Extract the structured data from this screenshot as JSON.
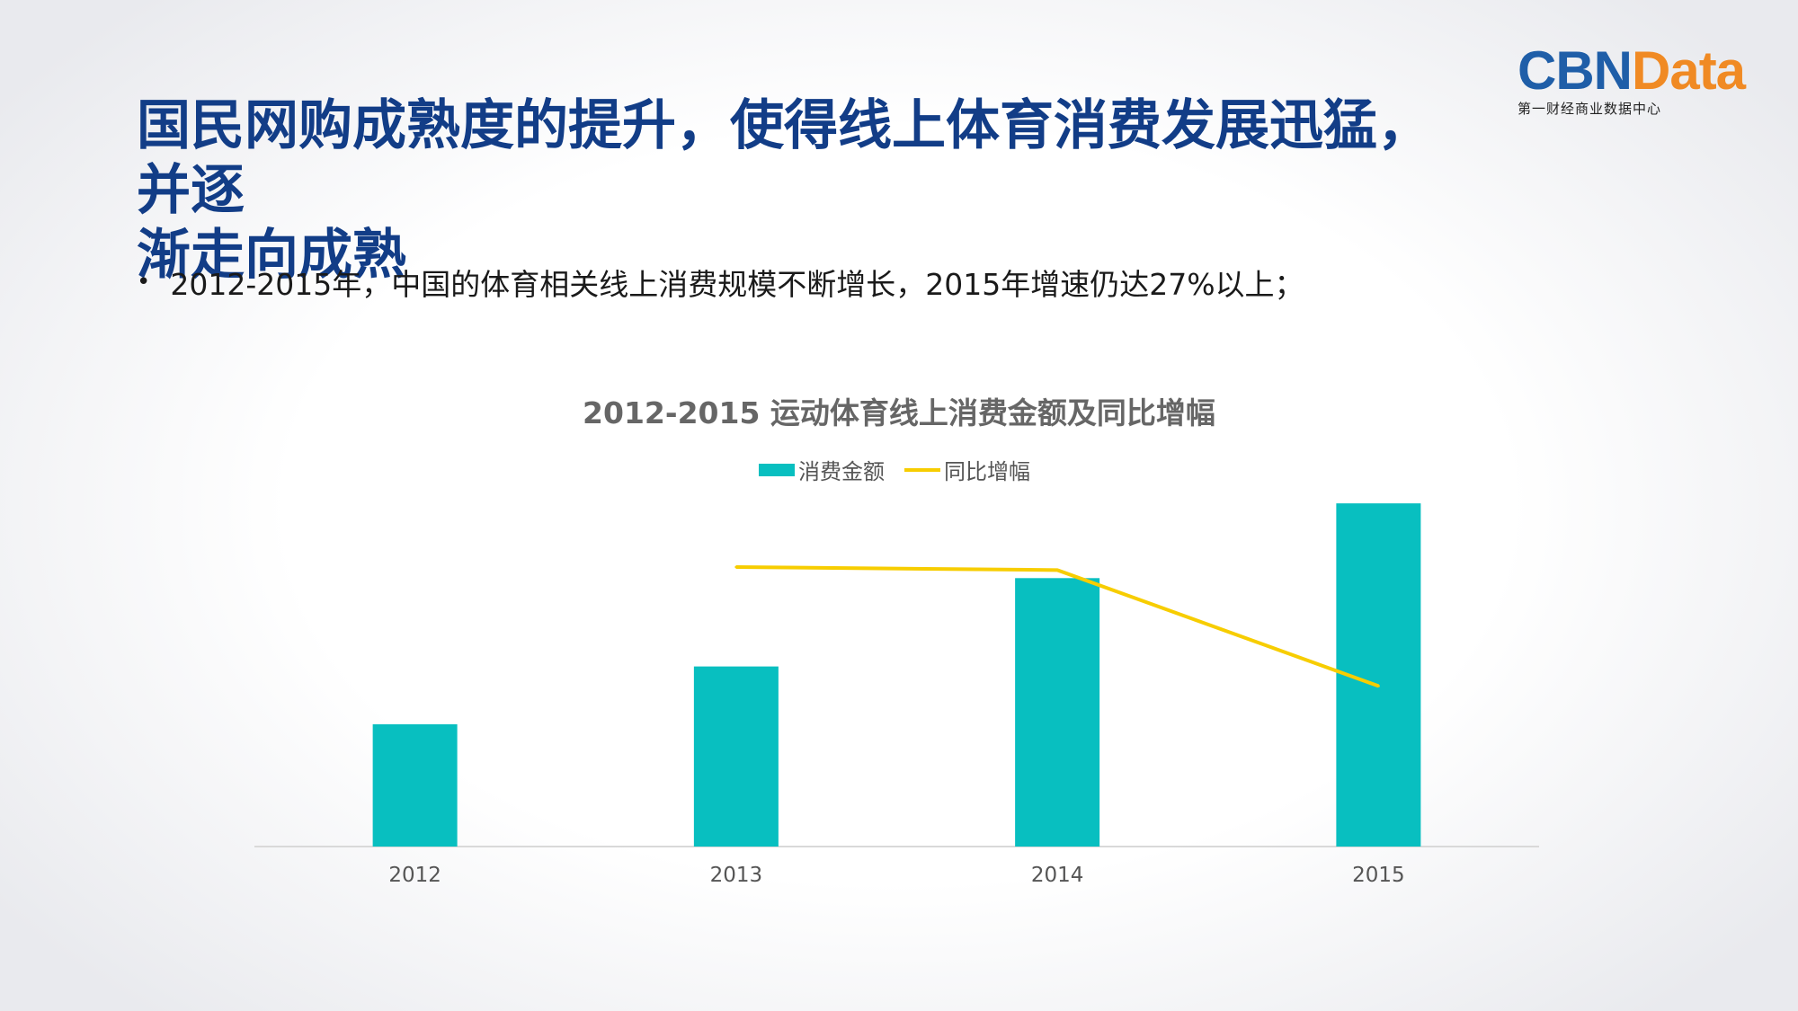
{
  "logo": {
    "main_left": "CBN",
    "main_right": "Data",
    "subtitle": "第一财经商业数据中心"
  },
  "header": {
    "title_line1": "国民网购成熟度的提升，使得线上体育消费发展迅猛，并逐",
    "title_line2": "渐走向成熟"
  },
  "bullet": {
    "symbol": "•",
    "text": "2012-2015年，中国的体育相关线上消费规模不断增长，2015年增速仍达27%以上；"
  },
  "colors": {
    "bar": "#08bfc0",
    "line": "#f7cd00",
    "title": "#123d87"
  },
  "chart_data": {
    "type": "bar+line",
    "title": "2012-2015 运动体育线上消费金额及同比增幅",
    "categories": [
      "2012",
      "2013",
      "2014",
      "2015"
    ],
    "series": [
      {
        "name": "消费金额",
        "type": "bar",
        "values": [
          36,
          53,
          79,
          101
        ]
      },
      {
        "name": "同比增幅",
        "type": "line",
        "values": [
          null,
          0.47,
          0.465,
          0.27
        ]
      }
    ],
    "bar_ylim": [
      0,
      105
    ],
    "line_ylim": [
      0,
      0.6
    ],
    "legend_position": "top-center"
  }
}
